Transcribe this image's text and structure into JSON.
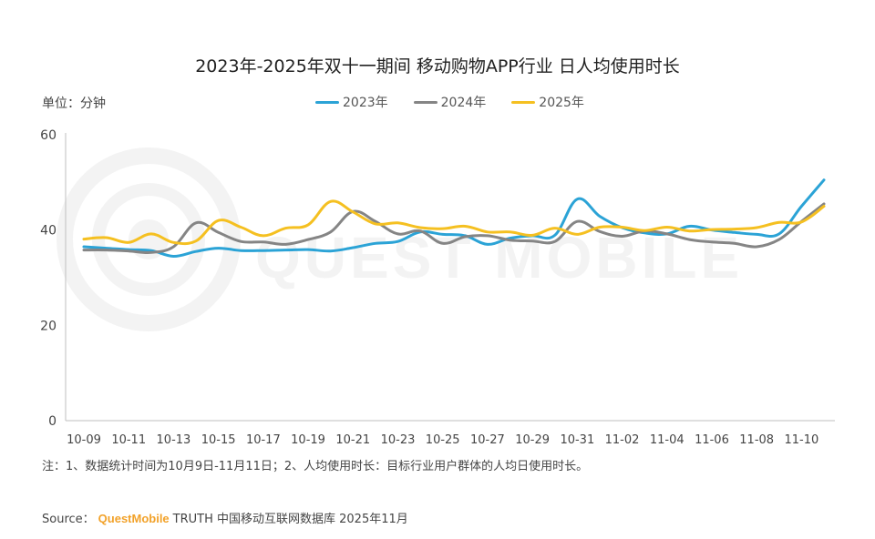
{
  "title": "2023年-2025年双十一期间 移动购物APP行业 日人均使用时长",
  "unit_label": "单位：分钟",
  "watermark_text": "QUEST MOBILE",
  "note": "注：1、数据统计时间为10月9日-11月11日；2、人均使用时长：目标行业用户群体的人均日使用时长。",
  "source": {
    "prefix": "Source：",
    "brand": "QuestMobile",
    "rest": "TRUTH 中国移动互联网数据库 2025年11月"
  },
  "chart_data": {
    "type": "line",
    "title": "2023年-2025年双十一期间 移动购物APP行业 日人均使用时长",
    "ylabel": "单位：分钟",
    "ylim": [
      0,
      60
    ],
    "yticks": [
      0,
      20,
      40,
      60
    ],
    "grid": false,
    "legend_position": "top",
    "x": [
      "10-09",
      "10-10",
      "10-11",
      "10-12",
      "10-13",
      "10-14",
      "10-15",
      "10-16",
      "10-17",
      "10-18",
      "10-19",
      "10-20",
      "10-21",
      "10-22",
      "10-23",
      "10-24",
      "10-25",
      "10-26",
      "10-27",
      "10-28",
      "10-29",
      "10-30",
      "10-31",
      "11-01",
      "11-02",
      "11-03",
      "11-04",
      "11-05",
      "11-06",
      "11-07",
      "11-08",
      "11-09",
      "11-10",
      "11-11"
    ],
    "x_tick_labels": [
      "10-09",
      "10-11",
      "10-13",
      "10-15",
      "10-17",
      "10-19",
      "10-21",
      "10-23",
      "10-25",
      "10-27",
      "10-29",
      "10-31",
      "11-02",
      "11-04",
      "11-06",
      "11-08",
      "11-10"
    ],
    "series": [
      {
        "name": "2023年",
        "color": "#2ba3d6",
        "values": [
          36.5,
          36.2,
          35.9,
          35.7,
          34.5,
          35.5,
          36.2,
          35.7,
          35.7,
          35.8,
          35.9,
          35.6,
          36.3,
          37.2,
          37.6,
          39.6,
          39.1,
          38.8,
          37.0,
          38.3,
          38.8,
          38.9,
          46.5,
          42.9,
          40.5,
          39.4,
          39.2,
          40.8,
          40.0,
          39.5,
          39.1,
          39.2,
          45.0,
          50.5
        ]
      },
      {
        "name": "2024年",
        "color": "#858585",
        "values": [
          35.8,
          35.8,
          35.6,
          35.3,
          36.5,
          41.5,
          39.5,
          37.6,
          37.5,
          37.0,
          38.0,
          39.6,
          43.9,
          41.8,
          39.2,
          39.8,
          37.2,
          38.6,
          38.8,
          37.9,
          37.7,
          37.6,
          41.8,
          39.7,
          38.7,
          39.8,
          39.2,
          38.0,
          37.5,
          37.2,
          36.5,
          38.0,
          41.8,
          45.5
        ]
      },
      {
        "name": "2025年",
        "color": "#f5c021",
        "values": [
          38.1,
          38.4,
          37.4,
          39.2,
          37.4,
          37.7,
          42.0,
          40.6,
          38.8,
          40.4,
          41.1,
          46.0,
          43.8,
          41.3,
          41.5,
          40.5,
          40.3,
          40.8,
          39.6,
          39.6,
          38.9,
          40.4,
          39.1,
          40.6,
          40.6,
          39.9,
          40.6,
          39.8,
          40.1,
          40.2,
          40.5,
          41.6,
          41.7,
          45.0
        ]
      }
    ]
  }
}
